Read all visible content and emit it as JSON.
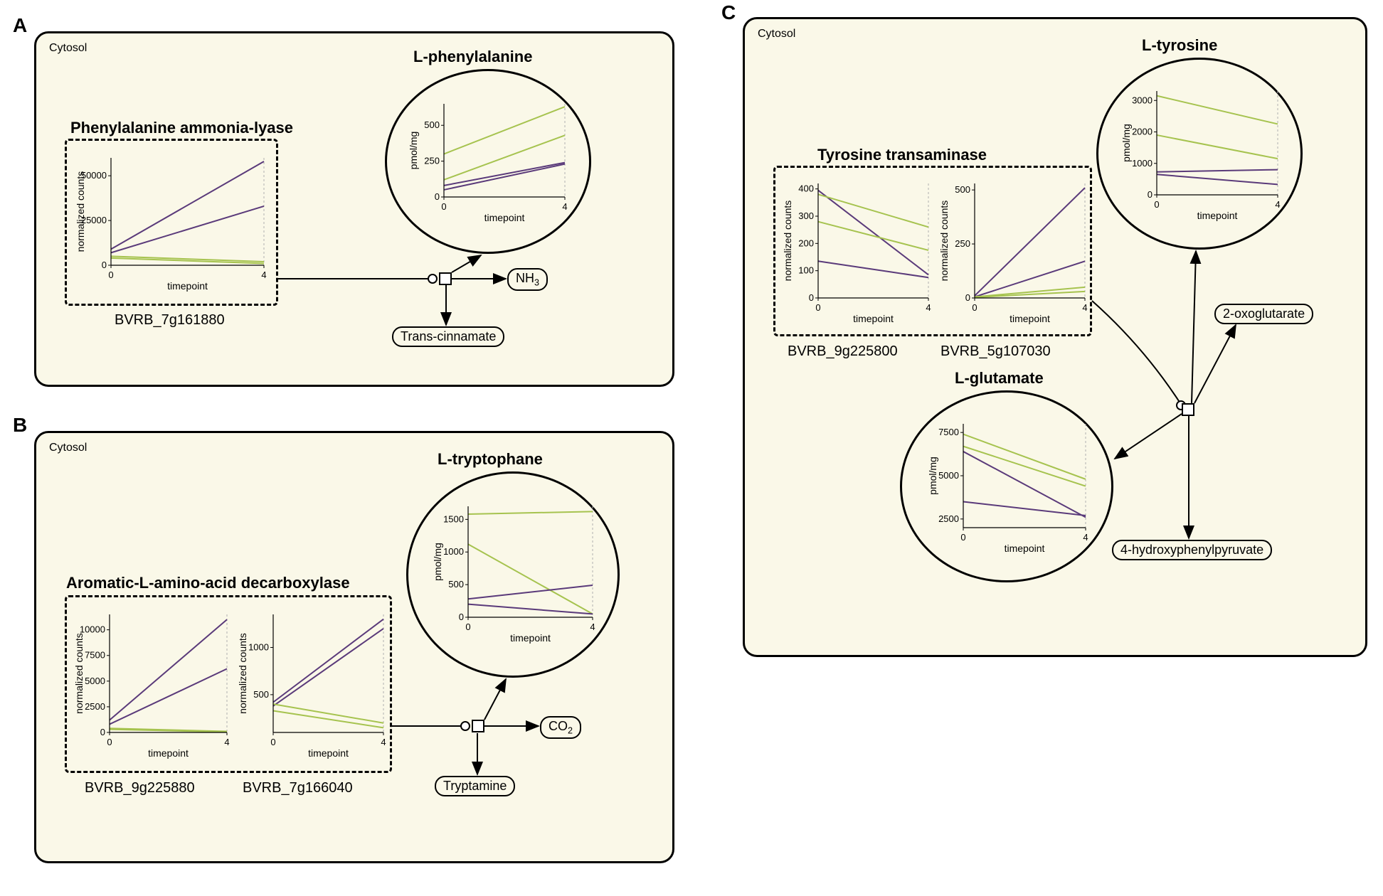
{
  "panels": {
    "A": {
      "label": "A",
      "cytosol": "Cytosol"
    },
    "B": {
      "label": "B",
      "cytosol": "Cytosol"
    },
    "C": {
      "label": "C",
      "cytosol": "Cytosol"
    }
  },
  "colors": {
    "purple": "#5a3a7a",
    "green": "#a6c34f",
    "grid": "#b0b0b0",
    "panel_bg": "#faf8e8",
    "black": "#000000"
  },
  "A": {
    "enzyme": {
      "title": "Phenylalanine ammonia-lyase",
      "gene1": "BVRB_7g161880",
      "chart1": {
        "ylabel": "normalized counts",
        "xlabel": "timepoint",
        "xticks": [
          "0",
          "4"
        ],
        "yticks": [
          "0",
          "25000",
          "50000"
        ],
        "ymax": 60000,
        "series": [
          {
            "color": "purple",
            "y": [
              9000,
              58000
            ]
          },
          {
            "color": "purple",
            "y": [
              7000,
              33000
            ]
          },
          {
            "color": "green",
            "y": [
              5000,
              2000
            ]
          },
          {
            "color": "green",
            "y": [
              4000,
              1000
            ]
          }
        ]
      }
    },
    "metabolite": {
      "title": "L-phenylalanine",
      "chart": {
        "ylabel": "pmol/mg",
        "xlabel": "timepoint",
        "xticks": [
          "0",
          "4"
        ],
        "yticks": [
          "0",
          "250",
          "500"
        ],
        "ymax": 650,
        "series": [
          {
            "color": "green",
            "y": [
              300,
              630
            ]
          },
          {
            "color": "green",
            "y": [
              120,
              430
            ]
          },
          {
            "color": "purple",
            "y": [
              80,
              240
            ]
          },
          {
            "color": "purple",
            "y": [
              50,
              230
            ]
          }
        ]
      }
    },
    "products": {
      "nh3": "NH",
      "nh3_sub": "3",
      "trans_cinnamate": "Trans-cinnamate"
    }
  },
  "B": {
    "enzyme": {
      "title": "Aromatic-L-amino-acid decarboxylase",
      "gene1": "BVRB_9g225880",
      "gene2": "BVRB_7g166040",
      "chart1": {
        "ylabel": "normalized counts",
        "xlabel": "timepoint",
        "xticks": [
          "0",
          "4"
        ],
        "yticks": [
          "0",
          "2500",
          "5000",
          "7500",
          "10000"
        ],
        "ymax": 11500,
        "series": [
          {
            "color": "purple",
            "y": [
              1200,
              11000
            ]
          },
          {
            "color": "purple",
            "y": [
              800,
              6200
            ]
          },
          {
            "color": "green",
            "y": [
              400,
              100
            ]
          },
          {
            "color": "green",
            "y": [
              300,
              50
            ]
          }
        ]
      },
      "chart2": {
        "ylabel": "normalized counts",
        "xlabel": "timepoint",
        "xticks": [
          "0",
          "4"
        ],
        "yticks": [
          "500",
          "1000"
        ],
        "ymin": 100,
        "ymax": 1350,
        "series": [
          {
            "color": "purple",
            "y": [
              420,
              1300
            ]
          },
          {
            "color": "purple",
            "y": [
              380,
              1200
            ]
          },
          {
            "color": "green",
            "y": [
              400,
              200
            ]
          },
          {
            "color": "green",
            "y": [
              330,
              150
            ]
          }
        ]
      }
    },
    "metabolite": {
      "title": "L-tryptophane",
      "chart": {
        "ylabel": "pmol/mg",
        "xlabel": "timepoint",
        "xticks": [
          "0",
          "4"
        ],
        "yticks": [
          "0",
          "500",
          "1000",
          "1500"
        ],
        "ymax": 1700,
        "series": [
          {
            "color": "green",
            "y": [
              1580,
              1620
            ]
          },
          {
            "color": "green",
            "y": [
              1120,
              50
            ]
          },
          {
            "color": "purple",
            "y": [
              280,
              490
            ]
          },
          {
            "color": "purple",
            "y": [
              200,
              50
            ]
          }
        ]
      }
    },
    "products": {
      "co2": "CO",
      "co2_sub": "2",
      "tryptamine": "Tryptamine"
    }
  },
  "C": {
    "enzyme": {
      "title": "Tyrosine transaminase",
      "gene1": "BVRB_9g225800",
      "gene2": "BVRB_5g107030",
      "chart1": {
        "ylabel": "normalized counts",
        "xlabel": "timepoint",
        "xticks": [
          "0",
          "4"
        ],
        "yticks": [
          "0",
          "100",
          "200",
          "300",
          "400"
        ],
        "ymax": 420,
        "series": [
          {
            "color": "purple",
            "y": [
              395,
              85
            ]
          },
          {
            "color": "green",
            "y": [
              380,
              260
            ]
          },
          {
            "color": "green",
            "y": [
              280,
              175
            ]
          },
          {
            "color": "purple",
            "y": [
              135,
              75
            ]
          }
        ]
      },
      "chart2": {
        "ylabel": "normalized counts",
        "xlabel": "timepoint",
        "xticks": [
          "0",
          "4"
        ],
        "yticks": [
          "0",
          "250",
          "500"
        ],
        "ymax": 530,
        "series": [
          {
            "color": "purple",
            "y": [
              10,
              510
            ]
          },
          {
            "color": "purple",
            "y": [
              5,
              170
            ]
          },
          {
            "color": "green",
            "y": [
              5,
              50
            ]
          },
          {
            "color": "green",
            "y": [
              3,
              30
            ]
          }
        ]
      }
    },
    "metabolite_tyrosine": {
      "title": "L-tyrosine",
      "chart": {
        "ylabel": "pmol/mg",
        "xlabel": "timepoint",
        "xticks": [
          "0",
          "4"
        ],
        "yticks": [
          "0",
          "1000",
          "2000",
          "3000"
        ],
        "ymax": 3300,
        "series": [
          {
            "color": "green",
            "y": [
              3150,
              2250
            ]
          },
          {
            "color": "green",
            "y": [
              1900,
              1150
            ]
          },
          {
            "color": "purple",
            "y": [
              730,
              800
            ]
          },
          {
            "color": "purple",
            "y": [
              650,
              330
            ]
          }
        ]
      }
    },
    "metabolite_glutamate": {
      "title": "L-glutamate",
      "chart": {
        "ylabel": "pmol/mg",
        "xlabel": "timepoint",
        "xticks": [
          "0",
          "4"
        ],
        "yticks": [
          "2500",
          "5000",
          "7500"
        ],
        "ymin": 2000,
        "ymax": 8000,
        "series": [
          {
            "color": "green",
            "y": [
              7400,
              4800
            ]
          },
          {
            "color": "green",
            "y": [
              6700,
              4400
            ]
          },
          {
            "color": "purple",
            "y": [
              6400,
              2600
            ]
          },
          {
            "color": "purple",
            "y": [
              3500,
              2700
            ]
          }
        ]
      }
    },
    "products": {
      "oxoglutarate": "2-oxoglutarate",
      "hydroxyphenylpyruvate": "4-hydroxyphenylpyruvate"
    }
  },
  "chart_style": {
    "line_width": 2,
    "axis_width": 1.2,
    "grid_dash": "3,3"
  }
}
